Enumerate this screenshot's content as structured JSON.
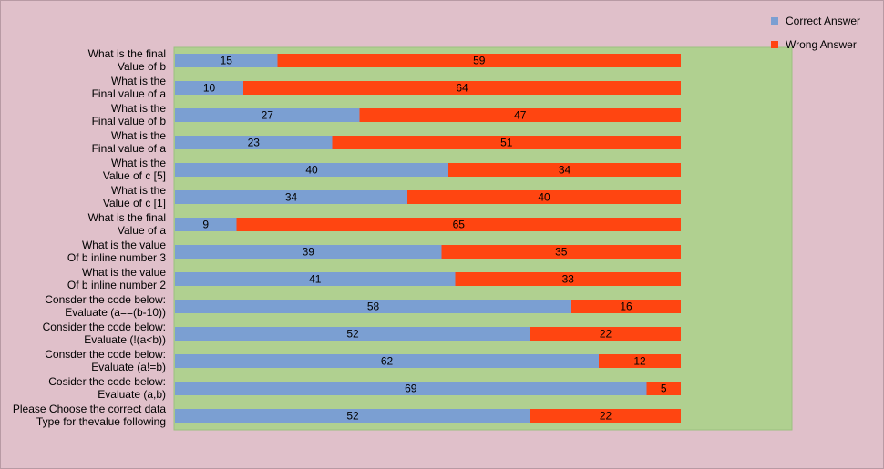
{
  "chart_data": {
    "type": "bar",
    "orientation": "horizontal",
    "stacked": true,
    "categories": [
      "What is the final\nValue of b",
      "What is the\n  Final value of a",
      "What is the\n  Final value of b",
      "What is the\n  Final value of a",
      "What is the\n  Value of c [5]",
      "What is the\n  Value of c [1]",
      "What is the final\nValue of a",
      "What is the value\n  Of b inline number 3",
      "What is the value\n  Of b inline number 2",
      "Consder the code below:\n  Evaluate (a==(b-10))",
      "Consider the code below:\n  Evaluate (!(a<b))",
      "Consder the code below:\n  Evaluate (a!=b)",
      "Cosider the code below:\n  Evaluate (a,b)",
      "Please Choose the correct data\n  Type for thevalue following"
    ],
    "series": [
      {
        "name": "Correct Answer",
        "color": "#7b9fd2",
        "values": [
          15,
          10,
          27,
          23,
          40,
          34,
          9,
          39,
          41,
          58,
          52,
          62,
          69,
          52
        ]
      },
      {
        "name": "Wrong Answer",
        "color": "#ff4511",
        "values": [
          59,
          64,
          47,
          51,
          34,
          40,
          65,
          35,
          33,
          16,
          22,
          12,
          5,
          22
        ]
      }
    ],
    "xlim": [
      0,
      90
    ],
    "grid": false,
    "legend_position": "top-right",
    "plot_background": "#b0d090"
  }
}
